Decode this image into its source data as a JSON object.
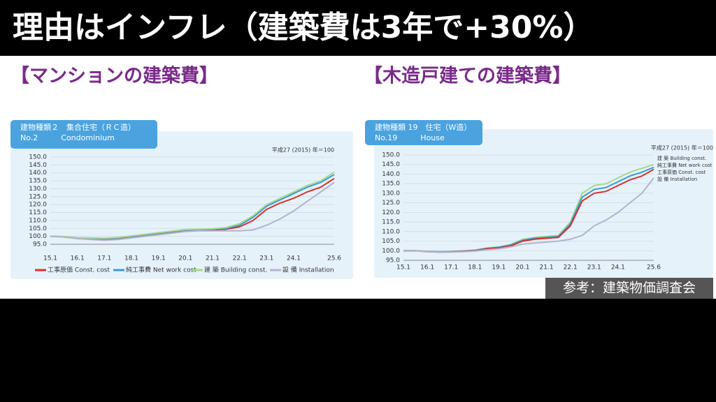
{
  "headline": "理由はインフレ（建築費は3年で+30%）",
  "source": "参考：建築物価調査会",
  "chart_data": [
    {
      "type": "line",
      "heading": "【マンションの建築費】",
      "label_box": [
        "建物種類２　集合住宅（ＲＣ造）",
        "No.2　　　Condominium"
      ],
      "note": "平成27 (2015) 年＝100",
      "legend": "bottom",
      "grid": true,
      "categories": [
        "15.1",
        null,
        "16.1",
        null,
        "17.1",
        null,
        "18.1",
        null,
        "19.1",
        null,
        "20.1",
        null,
        "21.1",
        null,
        "22.1",
        null,
        "23.1",
        null,
        "24.1",
        null,
        null,
        "25.6"
      ],
      "ylim": [
        95,
        150
      ],
      "yticks": [
        {
          "value": 95,
          "label": "95.0"
        },
        {
          "value": 100,
          "label": "100.0"
        },
        {
          "value": 105,
          "label": "105.0"
        },
        {
          "value": 110,
          "label": "110.0"
        },
        {
          "value": 115,
          "label": "115.0"
        },
        {
          "value": 120,
          "label": "120.0"
        },
        {
          "value": 125,
          "label": "125.0"
        },
        {
          "value": 130,
          "label": "130.0"
        },
        {
          "value": 135,
          "label": "135.0"
        },
        {
          "value": 140,
          "label": "140.0"
        },
        {
          "value": 145,
          "label": "145.0"
        },
        {
          "value": 150,
          "label": "150.0"
        }
      ],
      "series": [
        {
          "name": "工事原価 Const. cost",
          "color": "#d9312b",
          "values": [
            100,
            99.8,
            99,
            98.5,
            98,
            98.8,
            99.5,
            100.5,
            101.5,
            102.5,
            103.5,
            104,
            104,
            104.5,
            106,
            110,
            117,
            121,
            124,
            128,
            131,
            136.5
          ]
        },
        {
          "name": "純工事費 Net work cost",
          "color": "#3a9ad9",
          "values": [
            100,
            99.8,
            99,
            98.8,
            98.5,
            99,
            100,
            101,
            102,
            103,
            104,
            104.3,
            104.5,
            105,
            107,
            112,
            119,
            123,
            127,
            131,
            134,
            139
          ]
        },
        {
          "name": "建 築 Building const.",
          "color": "#a6d98a",
          "values": [
            100,
            99.9,
            99.2,
            99,
            98.8,
            99.3,
            100.3,
            101.3,
            102.3,
            103.3,
            104.3,
            104.5,
            104.8,
            105.5,
            108,
            113,
            120,
            124,
            128,
            132,
            135,
            140.5
          ]
        },
        {
          "name": "設 備 Installation",
          "color": "#b3b3cf",
          "values": [
            100,
            99.5,
            98.5,
            98,
            97.5,
            98,
            99,
            100,
            101,
            102,
            103,
            103.5,
            103.5,
            103.5,
            103.5,
            104,
            107,
            111,
            116,
            122,
            128,
            134
          ]
        }
      ]
    },
    {
      "type": "line",
      "heading": "【木造戸建ての建築費】",
      "label_box": [
        "建物種類 19　住宅（W造）",
        "No.19　　　House"
      ],
      "note": "平成27 (2015) 年＝100",
      "legend": "upper right",
      "grid": true,
      "categories": [
        "15.1",
        null,
        "16.1",
        null,
        "17.1",
        null,
        "18.1",
        null,
        "19.1",
        null,
        "20.1",
        null,
        "21.1",
        null,
        "22.1",
        null,
        "23.1",
        null,
        "24.1",
        null,
        null,
        "25.6"
      ],
      "ylim": [
        95,
        150
      ],
      "yticks": [
        {
          "value": 95,
          "label": "95.0"
        },
        {
          "value": 100,
          "label": "100.0"
        },
        {
          "value": 105,
          "label": "105.0"
        },
        {
          "value": 110,
          "label": "110.0"
        },
        {
          "value": 115,
          "label": "115.0"
        },
        {
          "value": 120,
          "label": "120.0"
        },
        {
          "value": 125,
          "label": "125.0"
        },
        {
          "value": 130,
          "label": "130.0"
        },
        {
          "value": 135,
          "label": "135.0"
        },
        {
          "value": 140,
          "label": "140.0"
        },
        {
          "value": 145,
          "label": "145.0"
        },
        {
          "value": 150,
          "label": "150.0"
        }
      ],
      "series": [
        {
          "name": "建 築 Building const.",
          "color": "#a6d98a",
          "values": [
            100,
            100,
            99.7,
            99.5,
            99.6,
            99.9,
            100.4,
            101.5,
            102,
            103.3,
            106,
            107,
            107.5,
            108,
            115,
            130,
            134,
            135,
            138,
            141,
            143,
            145
          ]
        },
        {
          "name": "純工事費 Net work cost",
          "color": "#3a9ad9",
          "values": [
            100,
            100,
            99.6,
            99.4,
            99.5,
            99.8,
            100.2,
            101.2,
            101.8,
            103,
            105.5,
            106.5,
            107,
            107.5,
            114,
            128,
            132,
            133,
            136,
            139,
            141,
            143.5
          ]
        },
        {
          "name": "工事原価 Const. cost",
          "color": "#d9312b",
          "values": [
            100,
            100,
            99.5,
            99.3,
            99.4,
            99.7,
            100,
            101,
            101.5,
            102.5,
            105,
            106,
            106.5,
            107,
            113,
            126,
            130,
            131,
            134,
            137,
            139,
            142.5
          ]
        },
        {
          "name": "設 備 Installation",
          "color": "#b3b3cf",
          "values": [
            100,
            100,
            99.5,
            99.3,
            99.3,
            99.5,
            99.8,
            100.5,
            101,
            102,
            103.5,
            104,
            104.5,
            105,
            106,
            108,
            113,
            116,
            120,
            125,
            130,
            138
          ]
        }
      ]
    }
  ]
}
